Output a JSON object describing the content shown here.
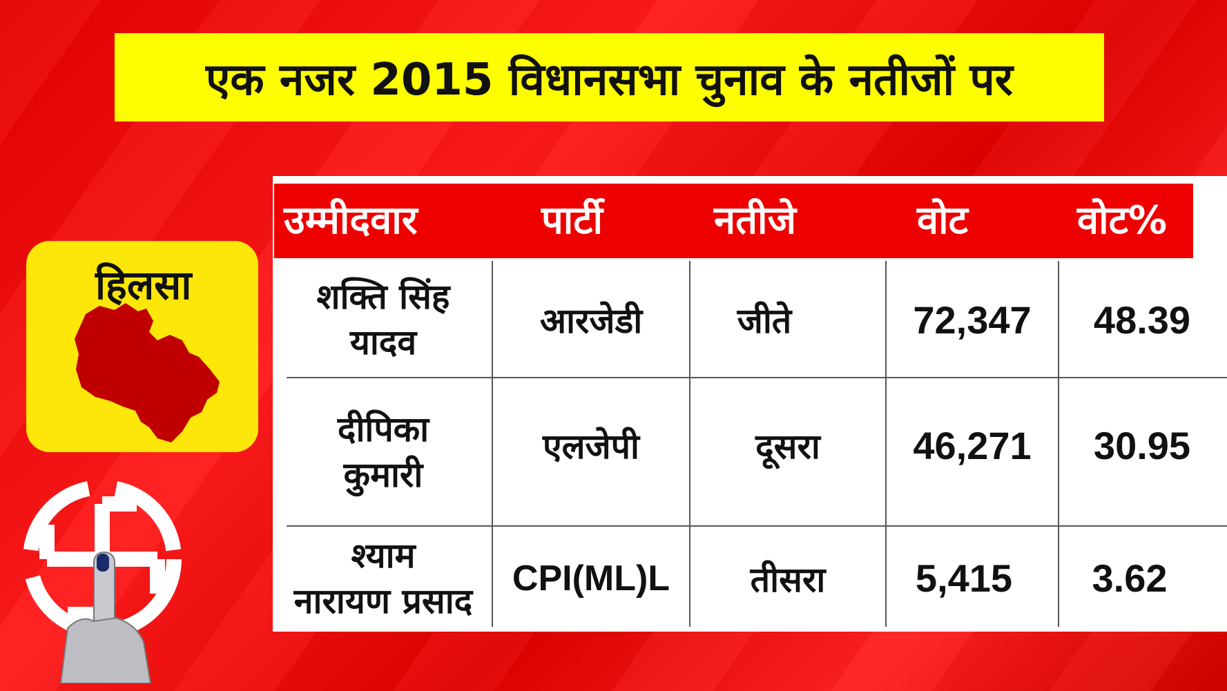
{
  "title": "एक नजर 2015 विधानसभा चुनाव के नतीजों पर",
  "constituency": {
    "name": "हिलसा",
    "map_color": "#c00000",
    "badge_color": "#fde60a"
  },
  "table": {
    "headers": [
      "उम्मीदवार",
      "पार्टी",
      "नतीजे",
      "वोट",
      "वोट%"
    ],
    "rows": [
      {
        "candidate_line1": "शक्ति सिंह",
        "candidate_line2": "यादव",
        "party": "आरजेडी",
        "result": "जीते",
        "votes": "72,347",
        "vote_pct": "48.39"
      },
      {
        "candidate_line1": "दीपिका",
        "candidate_line2": "कुमारी",
        "party": "एलजेपी",
        "result": "दूसरा",
        "votes": "46,271",
        "vote_pct": "30.95"
      },
      {
        "candidate_line1": "श्याम",
        "candidate_line2": "नारायण प्रसाद",
        "party": "CPI(ML)L",
        "result": "तीसरा",
        "votes": "5,415",
        "vote_pct": "3.62"
      }
    ]
  },
  "colors": {
    "background": "#e60000",
    "title_band": "#fefe01",
    "header_band": "#ee0000"
  },
  "icons": [
    "election-commission-symbol-icon",
    "inked-finger-icon",
    "constituency-map-icon"
  ]
}
